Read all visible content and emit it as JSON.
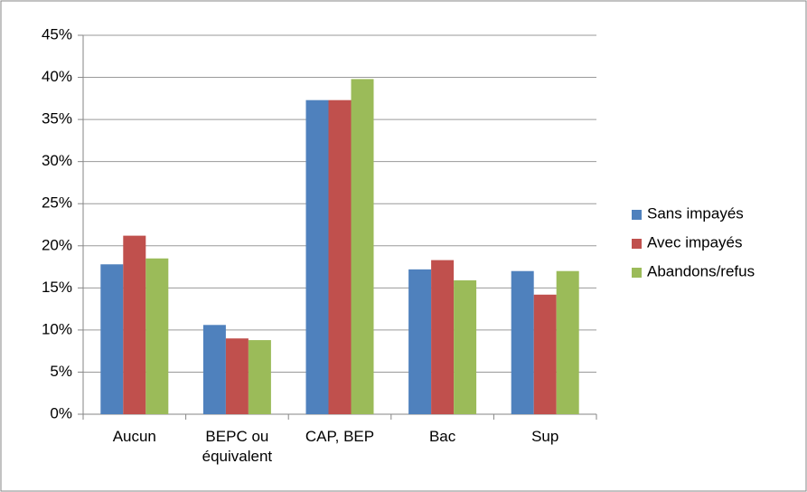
{
  "chart_data": {
    "type": "bar",
    "categories": [
      "Aucun",
      "BEPC ou\néquivalent",
      "CAP, BEP",
      "Bac",
      "Sup"
    ],
    "series": [
      {
        "name": "Sans impayés",
        "color": "#4f81bd",
        "values": [
          17.8,
          10.6,
          37.3,
          17.2,
          17.0
        ]
      },
      {
        "name": "Avec impayés",
        "color": "#c0504d",
        "values": [
          21.2,
          9.0,
          37.3,
          18.3,
          14.2
        ]
      },
      {
        "name": "Abandons/refus",
        "color": "#9bbb59",
        "values": [
          18.5,
          8.8,
          39.8,
          15.9,
          17.0
        ]
      }
    ],
    "ylim": [
      0,
      45
    ],
    "yticks": [
      {
        "value": 0,
        "label": "0%"
      },
      {
        "value": 5,
        "label": "5%"
      },
      {
        "value": 10,
        "label": "10%"
      },
      {
        "value": 15,
        "label": "15%"
      },
      {
        "value": 20,
        "label": "20%"
      },
      {
        "value": 25,
        "label": "25%"
      },
      {
        "value": 30,
        "label": "30%"
      },
      {
        "value": 35,
        "label": "35%"
      },
      {
        "value": 40,
        "label": "40%"
      },
      {
        "value": 45,
        "label": "45%"
      }
    ],
    "grid": true,
    "legend": "right"
  }
}
